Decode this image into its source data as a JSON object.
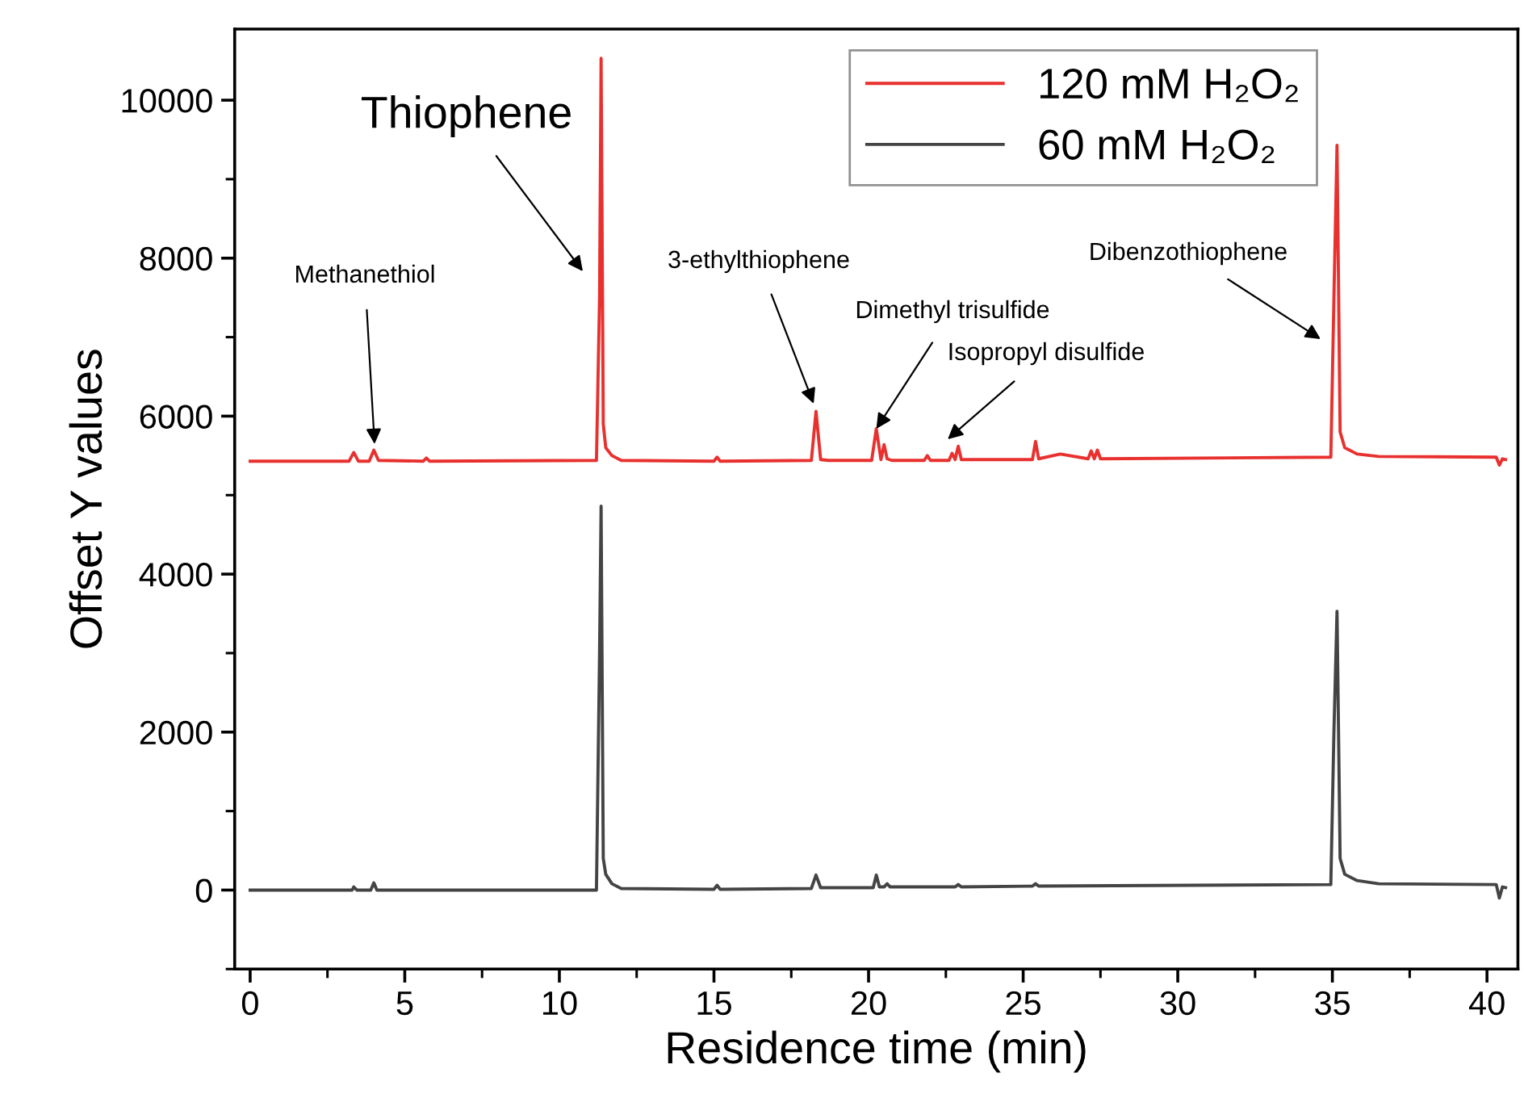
{
  "chart_data": {
    "type": "line",
    "xlabel": "Residence time (min)",
    "ylabel": "Offset Y values",
    "xlim": [
      -0.5,
      41
    ],
    "ylim": [
      -1000,
      10900
    ],
    "xticks": [
      0,
      5,
      10,
      15,
      20,
      25,
      30,
      35,
      40
    ],
    "yticks": [
      0,
      2000,
      4000,
      6000,
      8000,
      10000
    ],
    "grid": false,
    "legend": "top right",
    "marker": "none",
    "line_style": "solid",
    "series": [
      {
        "name": "120 mM H₂O₂",
        "color": "#e8312f",
        "x": [
          0,
          3.2,
          3.35,
          3.5,
          3.85,
          4.0,
          4.15,
          5.6,
          5.7,
          5.8,
          11.2,
          11.3,
          11.35,
          11.42,
          11.5,
          11.7,
          12,
          15.0,
          15.1,
          15.2,
          18.15,
          18.3,
          18.45,
          18.7,
          20.1,
          20.25,
          20.4,
          20.5,
          20.6,
          20.75,
          21.8,
          21.9,
          22.0,
          22.6,
          22.7,
          22.8,
          22.9,
          23.0,
          25.3,
          25.4,
          25.5,
          26.2,
          27.1,
          27.2,
          27.3,
          27.4,
          27.5,
          34.95,
          35.05,
          35.15,
          35.25,
          35.4,
          35.8,
          36.5,
          40.3,
          40.4,
          40.5,
          40.6
        ],
        "values": [
          5430,
          5430,
          5540,
          5430,
          5430,
          5570,
          5440,
          5430,
          5470,
          5430,
          5440,
          7500,
          10530,
          5900,
          5600,
          5500,
          5440,
          5430,
          5480,
          5430,
          5440,
          6060,
          5450,
          5440,
          5440,
          5840,
          5450,
          5640,
          5460,
          5440,
          5440,
          5500,
          5440,
          5440,
          5530,
          5450,
          5620,
          5450,
          5450,
          5680,
          5460,
          5520,
          5460,
          5560,
          5460,
          5570,
          5460,
          5480,
          7500,
          9430,
          5800,
          5600,
          5520,
          5490,
          5480,
          5380,
          5460,
          5450
        ]
      },
      {
        "name": "60 mM H₂O₂",
        "color": "#444444",
        "x": [
          0,
          3.3,
          3.35,
          3.45,
          3.9,
          4.0,
          4.1,
          11.2,
          11.3,
          11.35,
          11.42,
          11.5,
          11.7,
          12,
          15.0,
          15.1,
          15.2,
          18.15,
          18.3,
          18.45,
          20.15,
          20.25,
          20.35,
          20.5,
          20.6,
          20.7,
          22.8,
          22.9,
          23.0,
          25.3,
          25.4,
          25.5,
          34.95,
          35.05,
          35.15,
          35.25,
          35.4,
          35.8,
          36.5,
          40.3,
          40.4,
          40.5,
          40.6
        ],
        "values": [
          0,
          0,
          40,
          0,
          0,
          90,
          0,
          0,
          3000,
          4860,
          400,
          200,
          80,
          20,
          10,
          60,
          10,
          20,
          190,
          30,
          30,
          190,
          40,
          40,
          80,
          40,
          40,
          70,
          40,
          50,
          80,
          50,
          70,
          2000,
          3530,
          400,
          200,
          120,
          80,
          70,
          -100,
          40,
          30
        ]
      }
    ],
    "annotations": [
      "Methanethiol",
      "Thiophene",
      "3-ethylthiophene",
      {
        "text": "Dimethyl trisulfide",
        "x": 20.25,
        "y": 5840
      },
      "Isopropyl disulfide",
      "Dibenzothiophene"
    ]
  }
}
